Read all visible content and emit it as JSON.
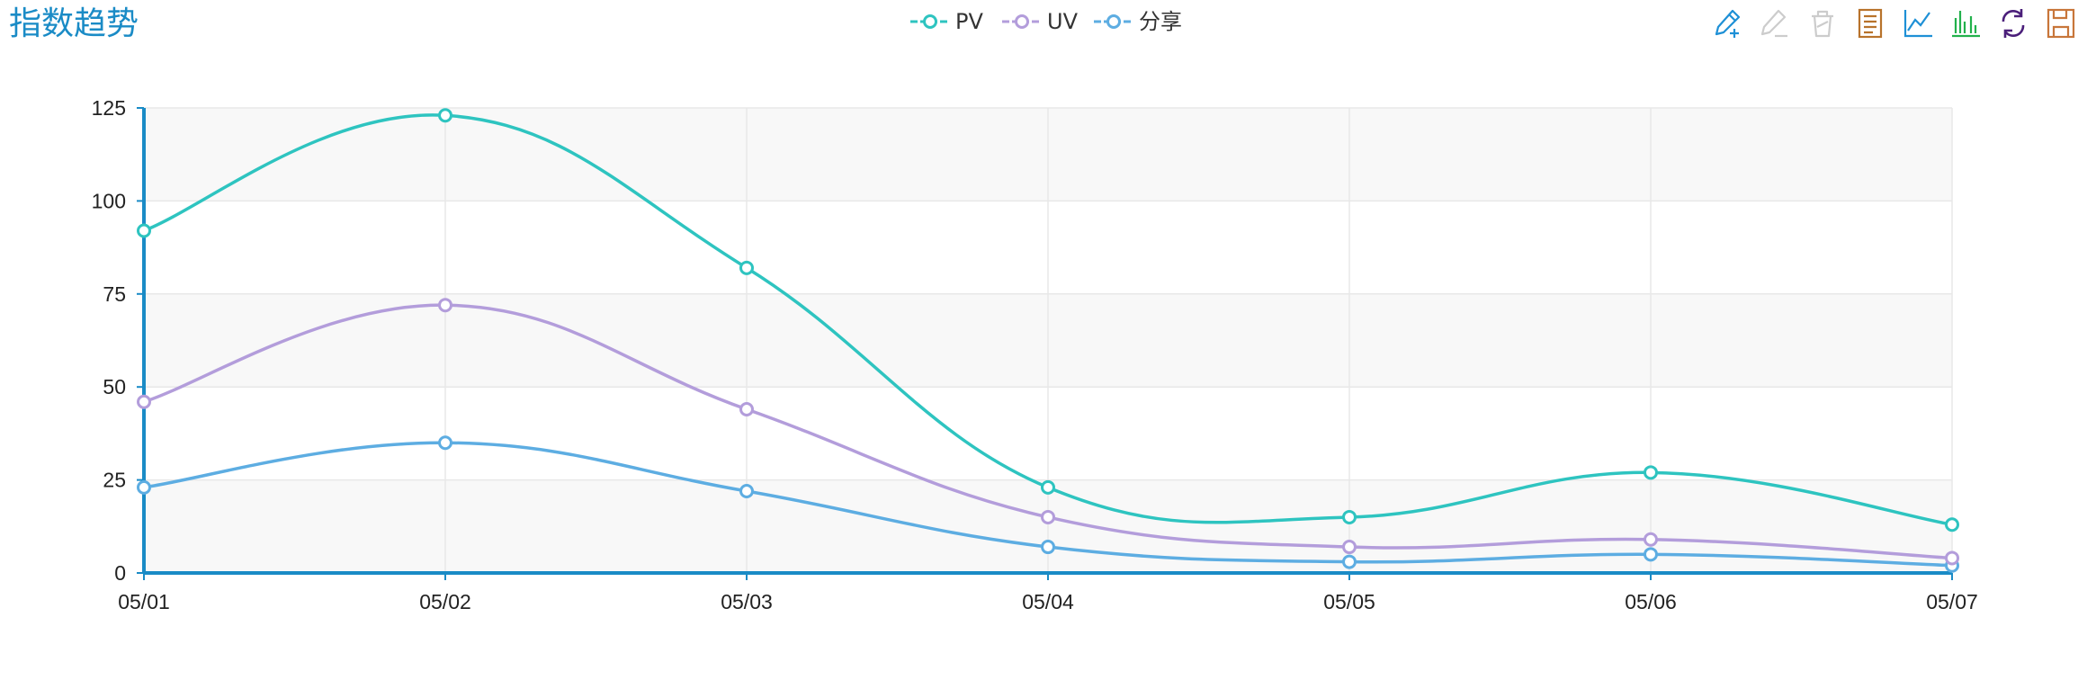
{
  "header": {
    "title": "指数趋势"
  },
  "toolbox": {
    "tools": [
      {
        "icon": "mark-pen-icon",
        "color": "#1e90d6"
      },
      {
        "icon": "mark-undo-icon",
        "color": "#cccccc"
      },
      {
        "icon": "mark-clear-icon",
        "color": "#cccccc"
      },
      {
        "icon": "data-view-icon",
        "color": "#b8732b"
      },
      {
        "icon": "line-chart-icon",
        "color": "#1e90d6"
      },
      {
        "icon": "bar-chart-icon",
        "color": "#22b14c"
      },
      {
        "icon": "restore-icon",
        "color": "#4b1f7a"
      },
      {
        "icon": "save-image-icon",
        "color": "#c8763a"
      }
    ]
  },
  "chart_data": {
    "type": "line",
    "smooth": true,
    "title": "指数趋势",
    "xlabel": "",
    "ylabel": "",
    "categories": [
      "05/01",
      "05/02",
      "05/03",
      "05/04",
      "05/05",
      "05/06",
      "05/07"
    ],
    "ylim": [
      0,
      125
    ],
    "yticks": [
      0,
      25,
      50,
      75,
      100,
      125
    ],
    "grid": true,
    "legend_position": "top-center",
    "series": [
      {
        "name": "PV",
        "color": "#2ec4c0",
        "values": [
          92,
          123,
          82,
          23,
          15,
          27,
          13
        ]
      },
      {
        "name": "UV",
        "color": "#b39ddb",
        "values": [
          46,
          72,
          44,
          15,
          7,
          9,
          4
        ]
      },
      {
        "name": "分享",
        "color": "#5dade2",
        "values": [
          23,
          35,
          22,
          7,
          3,
          5,
          2
        ]
      }
    ],
    "axis_color": "#1a8bc6"
  }
}
